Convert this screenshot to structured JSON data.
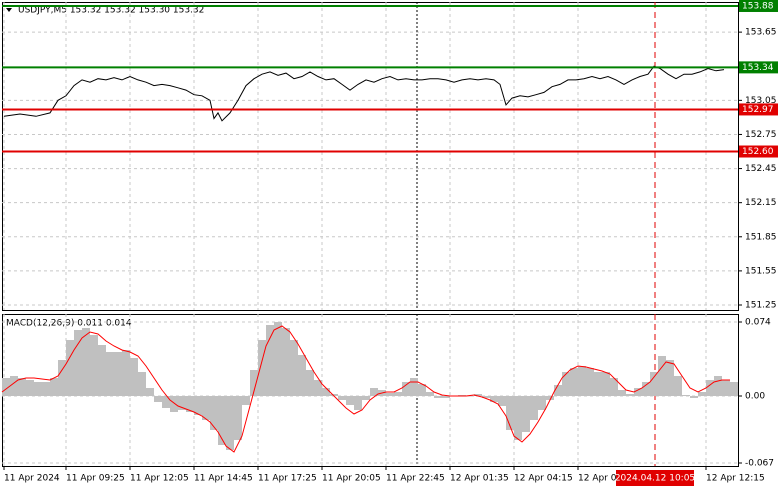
{
  "chart_data": [
    {
      "type": "line",
      "title": "USDJPY,M5  153.32 153.32 153.30 153.32",
      "grid": true,
      "xlim": [
        0,
        368
      ],
      "xticks": [
        {
          "value": 1,
          "label": "11 Apr 2024"
        },
        {
          "value": 32,
          "label": "11 Apr 09:25"
        },
        {
          "value": 64,
          "label": "11 Apr 12:05"
        },
        {
          "value": 96,
          "label": "11 Apr 14:45"
        },
        {
          "value": 128,
          "label": "11 Apr 17:25"
        },
        {
          "value": 160,
          "label": "11 Apr 20:05"
        },
        {
          "value": 192,
          "label": "11 Apr 22:45"
        },
        {
          "value": 224,
          "label": "12 Apr 01:35"
        },
        {
          "value": 256,
          "label": "12 Apr 04:15"
        },
        {
          "value": 288,
          "label": "12 Apr 0"
        },
        {
          "value": 352,
          "label": "12 Apr 12:15"
        }
      ],
      "ylim": [
        151.206,
        153.915
      ],
      "yticks": [
        153.65,
        153.05,
        152.75,
        152.45,
        152.15,
        151.85,
        151.55,
        151.25
      ],
      "x": [
        1,
        9,
        17,
        24,
        28,
        32,
        36,
        40,
        44,
        48,
        52,
        56,
        60,
        64,
        68,
        72,
        76,
        80,
        84,
        88,
        92,
        96,
        100,
        104,
        106,
        108,
        110,
        114,
        118,
        122,
        126,
        130,
        134,
        138,
        142,
        146,
        150,
        154,
        158,
        162,
        166,
        170,
        174,
        178,
        182,
        186,
        190,
        194,
        198,
        202,
        206,
        210,
        214,
        218,
        222,
        226,
        230,
        234,
        238,
        242,
        246,
        249,
        252,
        255,
        259,
        263,
        267,
        271,
        275,
        279,
        283,
        287,
        291,
        295,
        299,
        303,
        307,
        311,
        315,
        319,
        323,
        326,
        329,
        333,
        337,
        341,
        345,
        349,
        353,
        357,
        361
      ],
      "series": [
        {
          "color": "#000000",
          "values": [
            152.91,
            152.93,
            152.91,
            152.94,
            153.05,
            153.09,
            153.18,
            153.23,
            153.21,
            153.24,
            153.23,
            153.25,
            153.23,
            153.26,
            153.23,
            153.21,
            153.18,
            153.19,
            153.18,
            153.16,
            153.14,
            153.1,
            153.09,
            153.05,
            152.89,
            152.94,
            152.87,
            152.94,
            153.05,
            153.18,
            153.24,
            153.28,
            153.3,
            153.27,
            153.29,
            153.24,
            153.26,
            153.3,
            153.26,
            153.23,
            153.24,
            153.19,
            153.14,
            153.19,
            153.23,
            153.21,
            153.24,
            153.26,
            153.23,
            153.24,
            153.23,
            153.23,
            153.24,
            153.24,
            153.23,
            153.21,
            153.23,
            153.24,
            153.23,
            153.24,
            153.23,
            153.19,
            153.01,
            153.07,
            153.09,
            153.08,
            153.1,
            153.12,
            153.17,
            153.19,
            153.23,
            153.23,
            153.24,
            153.26,
            153.24,
            153.26,
            153.23,
            153.19,
            153.23,
            153.26,
            153.28,
            153.35,
            153.33,
            153.28,
            153.24,
            153.28,
            153.28,
            153.3,
            153.33,
            153.31,
            153.32
          ]
        }
      ],
      "hlines": [
        {
          "value": 153.88,
          "label": "153.88",
          "color": "#008000"
        },
        {
          "value": 153.34,
          "label": "153.34",
          "color": "#008000"
        },
        {
          "value": 152.97,
          "label": "152.97",
          "color": "#e00000"
        },
        {
          "value": 152.6,
          "label": "152.60",
          "color": "#e00000"
        }
      ],
      "separators": [
        {
          "x": 207.5,
          "color": "#000000"
        },
        {
          "x": 326.5,
          "color": "#e00000"
        }
      ],
      "annotation": {
        "x": 326.5,
        "text": "2024.04.12 10:05",
        "color": "#e00000"
      }
    },
    {
      "type": "macd",
      "title": "MACD(12,26,9) 0.011 0.014",
      "grid": true,
      "xlim": [
        0,
        368
      ],
      "ylim": [
        -0.07,
        0.082
      ],
      "yticks": [
        0.074,
        {
          "value": 0,
          "label": "0.00"
        },
        -0.067
      ],
      "x": [
        0,
        4,
        8,
        12,
        16,
        20,
        24,
        28,
        32,
        36,
        40,
        44,
        48,
        52,
        56,
        60,
        64,
        68,
        72,
        76,
        80,
        84,
        88,
        92,
        96,
        100,
        104,
        108,
        112,
        116,
        120,
        124,
        128,
        132,
        136,
        140,
        144,
        148,
        152,
        156,
        160,
        164,
        168,
        172,
        176,
        180,
        184,
        188,
        192,
        196,
        200,
        204,
        208,
        212,
        216,
        220,
        224,
        228,
        232,
        236,
        240,
        244,
        248,
        252,
        256,
        260,
        264,
        268,
        272,
        276,
        280,
        284,
        288,
        292,
        296,
        300,
        304,
        308,
        312,
        316,
        320,
        324,
        328,
        332,
        336,
        340,
        344,
        348,
        352,
        356,
        360,
        364
      ],
      "series": [
        {
          "type": "bar",
          "color": "#c0c0c0",
          "values": [
            0.018,
            0.02,
            0.018,
            0.016,
            0.014,
            0.014,
            0.018,
            0.036,
            0.056,
            0.066,
            0.068,
            0.061,
            0.051,
            0.044,
            0.044,
            0.046,
            0.038,
            0.024,
            0.008,
            -0.006,
            -0.012,
            -0.016,
            -0.014,
            -0.016,
            -0.019,
            -0.024,
            -0.034,
            -0.049,
            -0.054,
            -0.044,
            -0.009,
            0.026,
            0.056,
            0.071,
            0.074,
            0.068,
            0.056,
            0.041,
            0.026,
            0.016,
            0.008,
            0.002,
            -0.004,
            -0.009,
            -0.014,
            -0.004,
            0.008,
            0.006,
            0.003,
            0.004,
            0.014,
            0.018,
            0.012,
            0.004,
            -0.002,
            -0.002,
            0,
            0.001,
            0,
            0.002,
            -0.002,
            -0.006,
            -0.01,
            -0.034,
            -0.044,
            -0.036,
            -0.024,
            -0.014,
            -0.004,
            0.011,
            0.024,
            0.028,
            0.03,
            0.028,
            0.024,
            0.024,
            0.018,
            0.006,
            0.002,
            0.008,
            0.014,
            0.024,
            0.04,
            0.036,
            0.02,
            0.001,
            -0.002,
            0.004,
            0.016,
            0.02,
            0.016,
            0.014
          ]
        },
        {
          "type": "line",
          "color": "#ff0000",
          "values": [
            0.004,
            0.01,
            0.016,
            0.018,
            0.018,
            0.017,
            0.016,
            0.02,
            0.032,
            0.046,
            0.058,
            0.064,
            0.062,
            0.055,
            0.05,
            0.046,
            0.044,
            0.04,
            0.03,
            0.018,
            0.006,
            -0.004,
            -0.01,
            -0.013,
            -0.016,
            -0.02,
            -0.026,
            -0.036,
            -0.05,
            -0.056,
            -0.04,
            -0.01,
            0.02,
            0.05,
            0.066,
            0.07,
            0.064,
            0.052,
            0.038,
            0.024,
            0.012,
            0.004,
            -0.004,
            -0.012,
            -0.018,
            -0.014,
            -0.004,
            0.002,
            0.004,
            0.004,
            0.008,
            0.014,
            0.014,
            0.01,
            0.004,
            0.001,
            0,
            0,
            0,
            0.001,
            -0.001,
            -0.004,
            -0.008,
            -0.02,
            -0.04,
            -0.046,
            -0.038,
            -0.026,
            -0.012,
            0.004,
            0.018,
            0.026,
            0.03,
            0.029,
            0.027,
            0.025,
            0.022,
            0.014,
            0.006,
            0.004,
            0.008,
            0.014,
            0.024,
            0.034,
            0.032,
            0.02,
            0.008,
            0.004,
            0.008,
            0.014,
            0.016,
            0.016
          ]
        }
      ]
    }
  ]
}
